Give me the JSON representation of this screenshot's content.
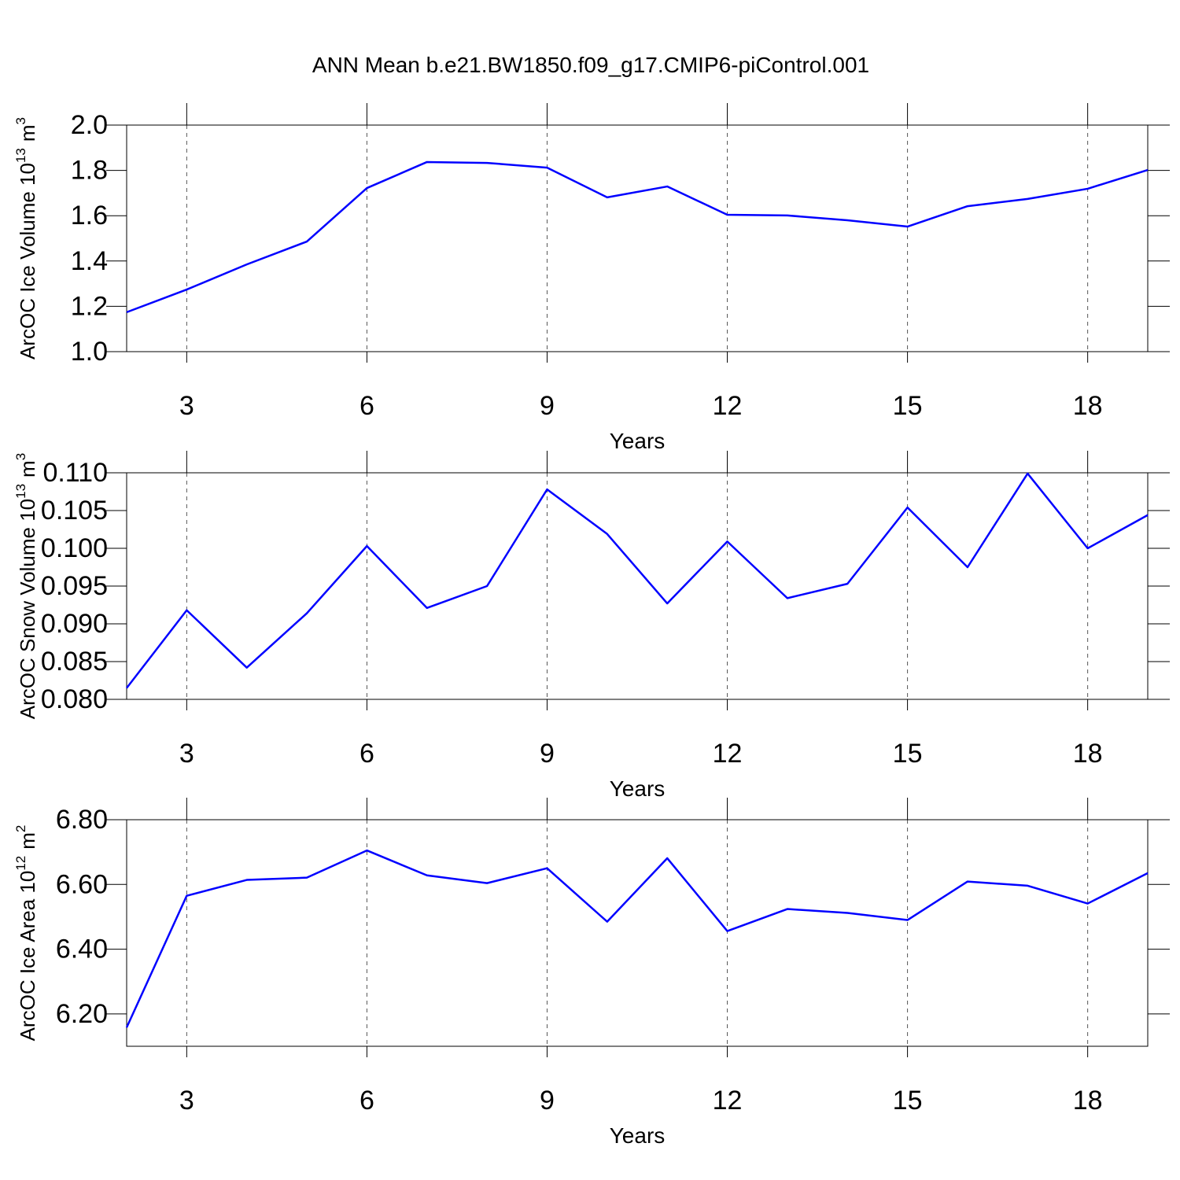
{
  "chart_data": [
    {
      "type": "line",
      "title": "ANN Mean b.e21.BW1850.f09_g17.CMIP6-piControl.001",
      "xlabel": "Years",
      "ylabel": {
        "text": "ArcOC Ice Volume 10",
        "exponent": "13",
        "unit": "m",
        "unit_exponent": "3"
      },
      "x": [
        2,
        3,
        4,
        5,
        6,
        7,
        8,
        9,
        10,
        11,
        12,
        13,
        14,
        15,
        16,
        17,
        18,
        19
      ],
      "series": [
        {
          "color": "#0000ff",
          "values": [
            1.174,
            1.274,
            1.385,
            1.486,
            1.722,
            1.837,
            1.833,
            1.812,
            1.681,
            1.729,
            1.604,
            1.601,
            1.58,
            1.552,
            1.642,
            1.674,
            1.719,
            1.802
          ]
        }
      ],
      "xlim": [
        2,
        19
      ],
      "xticks": [
        3,
        6,
        9,
        12,
        15,
        18
      ],
      "ylim": [
        1.0,
        2.0
      ],
      "yticks": [
        {
          "value": 1.0,
          "label": "1.0"
        },
        1.2,
        1.4,
        1.6,
        1.8,
        {
          "value": 2.0,
          "label": "2.0"
        }
      ],
      "grid": "x-dashed"
    },
    {
      "type": "line",
      "xlabel": "Years",
      "ylabel": {
        "text": "ArcOC Snow Volume 10",
        "exponent": "13",
        "unit": "m",
        "unit_exponent": "3"
      },
      "x": [
        2,
        3,
        4,
        5,
        6,
        7,
        8,
        9,
        10,
        11,
        12,
        13,
        14,
        15,
        16,
        17,
        18,
        19
      ],
      "series": [
        {
          "color": "#0000ff",
          "values": [
            0.0815,
            0.0918,
            0.0842,
            0.0914,
            0.1003,
            0.0921,
            0.095,
            0.1078,
            0.1019,
            0.0927,
            0.1009,
            0.0934,
            0.0953,
            0.1054,
            0.0975,
            0.1099,
            0.1,
            0.1044
          ]
        }
      ],
      "xlim": [
        2,
        19
      ],
      "xticks": [
        3,
        6,
        9,
        12,
        15,
        18
      ],
      "ylim": [
        0.08,
        0.11
      ],
      "yticks": [
        {
          "value": 0.08,
          "label": "0.080"
        },
        0.085,
        {
          "value": 0.09,
          "label": "0.090"
        },
        0.095,
        {
          "value": 0.1,
          "label": "0.100"
        },
        0.105,
        {
          "value": 0.11,
          "label": "0.110"
        }
      ],
      "grid": "x-dashed"
    },
    {
      "type": "line",
      "xlabel": "Years",
      "ylabel": {
        "text": "ArcOC Ice Area 10",
        "exponent": "12",
        "unit": "m",
        "unit_exponent": "2"
      },
      "x": [
        2,
        3,
        4,
        5,
        6,
        7,
        8,
        9,
        10,
        11,
        12,
        13,
        14,
        15,
        16,
        17,
        18,
        19
      ],
      "series": [
        {
          "color": "#0000ff",
          "values": [
            6.158,
            6.565,
            6.614,
            6.621,
            6.705,
            6.628,
            6.604,
            6.65,
            6.485,
            6.681,
            6.456,
            6.524,
            6.512,
            6.49,
            6.609,
            6.596,
            6.541,
            6.635
          ]
        }
      ],
      "xlim": [
        2,
        19
      ],
      "xticks": [
        3,
        6,
        9,
        12,
        15,
        18
      ],
      "ylim": [
        6.1,
        6.8
      ],
      "yticks": [
        {
          "value": 6.2,
          "label": "6.20"
        },
        {
          "value": 6.4,
          "label": "6.40"
        },
        {
          "value": 6.6,
          "label": "6.60"
        },
        {
          "value": 6.8,
          "label": "6.80"
        }
      ],
      "grid": "x-dashed"
    }
  ]
}
